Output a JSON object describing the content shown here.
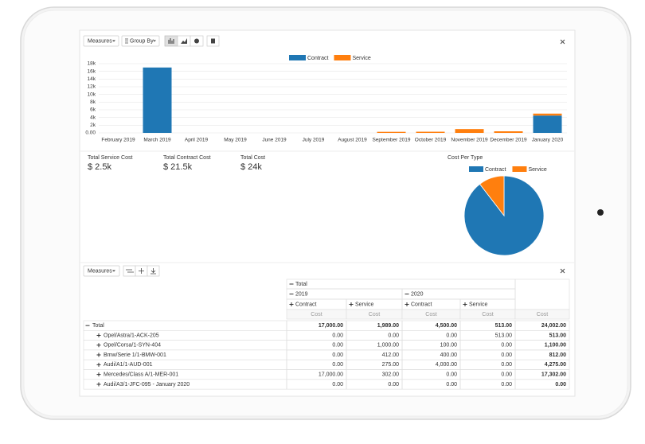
{
  "toolbar": {
    "measures": "Measures",
    "group_by": "Group By"
  },
  "chart_data": [
    {
      "type": "bar",
      "stacked": true,
      "categories": [
        "February 2019",
        "March 2019",
        "April 2019",
        "May 2019",
        "June 2019",
        "July 2019",
        "August 2019",
        "September 2019",
        "October 2019",
        "November 2019",
        "December 2019",
        "January 2020"
      ],
      "series": [
        {
          "name": "Contract",
          "color": "#1f77b4",
          "values": [
            0,
            17000,
            0,
            0,
            0,
            0,
            0,
            0,
            0,
            0,
            0,
            4500
          ]
        },
        {
          "name": "Service",
          "color": "#ff7f0e",
          "values": [
            0,
            0,
            0,
            0,
            0,
            0,
            0,
            275,
            302,
            1000,
            412,
            513
          ]
        }
      ],
      "ylim": [
        0,
        18000
      ],
      "yticks": [
        {
          "value": 0,
          "label": "0.00"
        },
        {
          "value": 2000,
          "label": "2k"
        },
        {
          "value": 4000,
          "label": "4k"
        },
        {
          "value": 6000,
          "label": "6k"
        },
        {
          "value": 8000,
          "label": "8k"
        },
        {
          "value": 10000,
          "label": "10k"
        },
        {
          "value": 12000,
          "label": "12k"
        },
        {
          "value": 14000,
          "label": "14k"
        },
        {
          "value": 16000,
          "label": "16k"
        },
        {
          "value": 18000,
          "label": "18k"
        }
      ],
      "grid": true
    },
    {
      "type": "pie",
      "title": "Cost Per Type",
      "categories": [
        "Contract",
        "Service"
      ],
      "values": [
        21500,
        2500
      ],
      "colors": [
        "#1f77b4",
        "#ff7f0e"
      ]
    }
  ],
  "kpis": [
    {
      "label": "Total Service Cost",
      "value": "$ 2.5k"
    },
    {
      "label": "Total Contract Cost",
      "value": "$ 21.5k"
    },
    {
      "label": "Total Cost",
      "value": "$ 24k"
    }
  ],
  "pivot": {
    "toolbar": {
      "measures": "Measures"
    },
    "header": {
      "total": "Total",
      "years": [
        "2019",
        "2020"
      ],
      "types": [
        "Contract",
        "Service",
        "Contract",
        "Service"
      ],
      "measures": [
        "Cost",
        "Cost",
        "Cost",
        "Cost",
        "Cost"
      ]
    },
    "rows": [
      {
        "label": "Total",
        "cells": [
          "17,000.00",
          "1,989.00",
          "4,500.00",
          "513.00",
          "24,002.00"
        ]
      },
      {
        "label": "Opel/Astra/1-ACK-205",
        "cells": [
          "0.00",
          "0.00",
          "0.00",
          "513.00",
          "513.00"
        ]
      },
      {
        "label": "Opel/Corsa/1-SYN-404",
        "cells": [
          "0.00",
          "1,000.00",
          "100.00",
          "0.00",
          "1,100.00"
        ]
      },
      {
        "label": "Bmw/Serie 1/1-BMW-001",
        "cells": [
          "0.00",
          "412.00",
          "400.00",
          "0.00",
          "812.00"
        ]
      },
      {
        "label": "Audi/A1/1-AUD-001",
        "cells": [
          "0.00",
          "275.00",
          "4,000.00",
          "0.00",
          "4,275.00"
        ]
      },
      {
        "label": "Mercedes/Class A/1-MER-001",
        "cells": [
          "17,000.00",
          "302.00",
          "0.00",
          "0.00",
          "17,302.00"
        ]
      },
      {
        "label": "Audi/A3/1-JFC-095 - January 2020",
        "cells": [
          "0.00",
          "0.00",
          "0.00",
          "0.00",
          "0.00"
        ]
      }
    ]
  }
}
